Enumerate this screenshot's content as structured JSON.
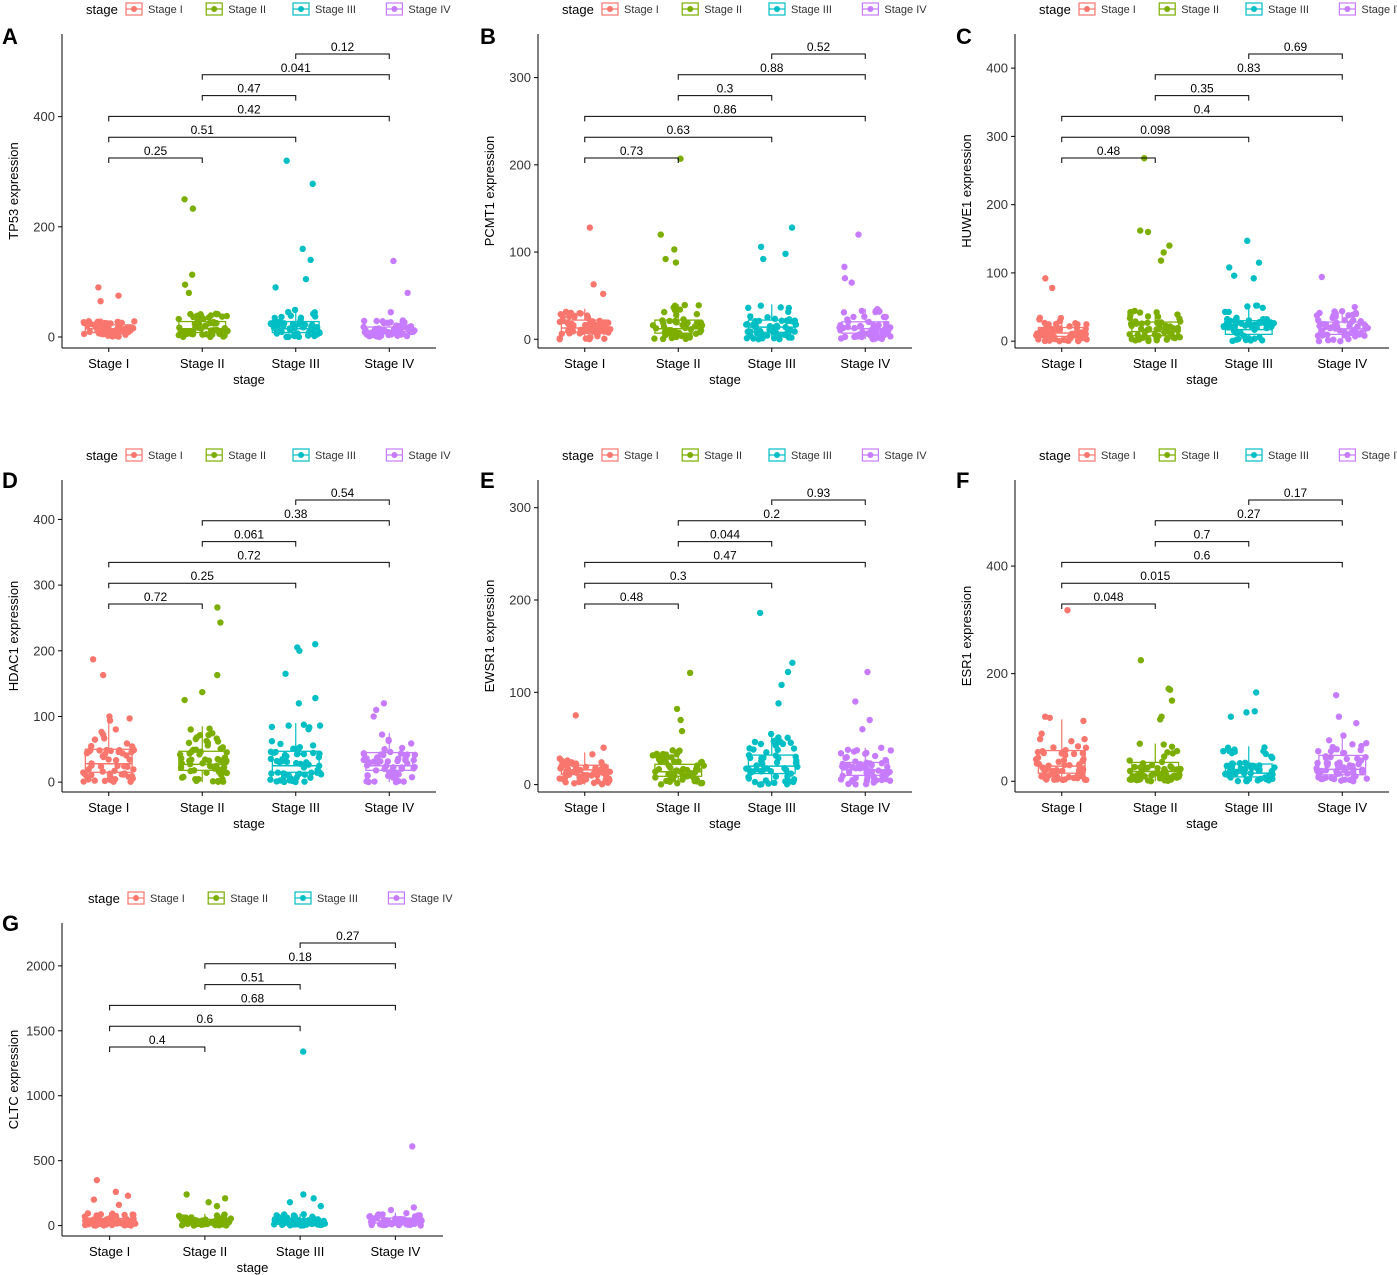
{
  "legend": {
    "title": "stage",
    "items": [
      {
        "label": "Stage I",
        "color": "#F8766D"
      },
      {
        "label": "Stage II",
        "color": "#7CAE00"
      },
      {
        "label": "Stage III",
        "color": "#00BFC4"
      },
      {
        "label": "Stage IV",
        "color": "#C77CFF"
      }
    ]
  },
  "chart_data": [
    {
      "panel": "A",
      "type": "box+jitter",
      "xlabel": "stage",
      "ylabel": "TP53 expression",
      "categories": [
        "Stage I",
        "Stage II",
        "Stage III",
        "Stage IV"
      ],
      "ylim": [
        -20,
        550
      ],
      "yticks": [
        0,
        200,
        400
      ],
      "boxes": [
        {
          "q1": 8,
          "median": 15,
          "q3": 22,
          "lo": 0,
          "hi": 30,
          "max": 90,
          "outliers": [
            90,
            75,
            65
          ]
        },
        {
          "q1": 8,
          "median": 15,
          "q3": 28,
          "lo": 0,
          "hi": 45,
          "max": 250,
          "outliers": [
            250,
            233,
            113,
            95,
            80
          ]
        },
        {
          "q1": 8,
          "median": 15,
          "q3": 28,
          "lo": 0,
          "hi": 50,
          "max": 320,
          "outliers": [
            320,
            278,
            160,
            140,
            105,
            90
          ]
        },
        {
          "q1": 6,
          "median": 10,
          "q3": 18,
          "lo": 0,
          "hi": 30,
          "max": 138,
          "outliers": [
            138,
            80,
            45
          ]
        }
      ],
      "comparisons": [
        {
          "from": "Stage III",
          "to": "Stage IV",
          "p": "0.12"
        },
        {
          "from": "Stage II",
          "to": "Stage IV",
          "p": "0.041"
        },
        {
          "from": "Stage II",
          "to": "Stage III",
          "p": "0.47"
        },
        {
          "from": "Stage I",
          "to": "Stage IV",
          "p": "0.42"
        },
        {
          "from": "Stage I",
          "to": "Stage III",
          "p": "0.51"
        },
        {
          "from": "Stage I",
          "to": "Stage II",
          "p": "0.25"
        }
      ]
    },
    {
      "panel": "B",
      "type": "box+jitter",
      "xlabel": "stage",
      "ylabel": "PCMT1 expression",
      "categories": [
        "Stage I",
        "Stage II",
        "Stage III",
        "Stage IV"
      ],
      "ylim": [
        -10,
        350
      ],
      "yticks": [
        0,
        100,
        200,
        300
      ],
      "boxes": [
        {
          "q1": 8,
          "median": 13,
          "q3": 22,
          "lo": 0,
          "hi": 35,
          "max": 128,
          "outliers": [
            128,
            63,
            52
          ]
        },
        {
          "q1": 7,
          "median": 12,
          "q3": 22,
          "lo": 0,
          "hi": 40,
          "max": 207,
          "outliers": [
            207,
            120,
            103,
            92,
            88
          ]
        },
        {
          "q1": 8,
          "median": 14,
          "q3": 22,
          "lo": 0,
          "hi": 40,
          "max": 128,
          "outliers": [
            128,
            106,
            98,
            92
          ]
        },
        {
          "q1": 7,
          "median": 12,
          "q3": 20,
          "lo": 0,
          "hi": 35,
          "max": 120,
          "outliers": [
            120,
            83,
            70,
            65
          ]
        }
      ],
      "comparisons": [
        {
          "from": "Stage III",
          "to": "Stage IV",
          "p": "0.52"
        },
        {
          "from": "Stage II",
          "to": "Stage IV",
          "p": "0.88"
        },
        {
          "from": "Stage II",
          "to": "Stage III",
          "p": "0.3"
        },
        {
          "from": "Stage I",
          "to": "Stage IV",
          "p": "0.86"
        },
        {
          "from": "Stage I",
          "to": "Stage III",
          "p": "0.63"
        },
        {
          "from": "Stage I",
          "to": "Stage II",
          "p": "0.73"
        }
      ]
    },
    {
      "panel": "C",
      "type": "box+jitter",
      "xlabel": "stage",
      "ylabel": "HUWE1 expression",
      "categories": [
        "Stage I",
        "Stage II",
        "Stage III",
        "Stage IV"
      ],
      "ylim": [
        -10,
        450
      ],
      "yticks": [
        0,
        100,
        200,
        300,
        400
      ],
      "boxes": [
        {
          "q1": 7,
          "median": 12,
          "q3": 20,
          "lo": 0,
          "hi": 35,
          "max": 92,
          "outliers": [
            92,
            78
          ]
        },
        {
          "q1": 8,
          "median": 14,
          "q3": 28,
          "lo": 0,
          "hi": 45,
          "max": 268,
          "outliers": [
            268,
            162,
            160,
            140,
            130,
            118
          ]
        },
        {
          "q1": 10,
          "median": 17,
          "q3": 30,
          "lo": 0,
          "hi": 55,
          "max": 147,
          "outliers": [
            147,
            115,
            108,
            96,
            92
          ]
        },
        {
          "q1": 10,
          "median": 18,
          "q3": 28,
          "lo": 0,
          "hi": 45,
          "max": 94,
          "outliers": [
            94,
            50
          ]
        }
      ],
      "comparisons": [
        {
          "from": "Stage III",
          "to": "Stage IV",
          "p": "0.69"
        },
        {
          "from": "Stage II",
          "to": "Stage IV",
          "p": "0.83"
        },
        {
          "from": "Stage II",
          "to": "Stage III",
          "p": "0.35"
        },
        {
          "from": "Stage I",
          "to": "Stage IV",
          "p": "0.4"
        },
        {
          "from": "Stage I",
          "to": "Stage III",
          "p": "0.098"
        },
        {
          "from": "Stage I",
          "to": "Stage II",
          "p": "0.48"
        }
      ]
    },
    {
      "panel": "D",
      "type": "box+jitter",
      "xlabel": "stage",
      "ylabel": "HDAC1 expression",
      "categories": [
        "Stage I",
        "Stage II",
        "Stage III",
        "Stage IV"
      ],
      "ylim": [
        -15,
        460
      ],
      "yticks": [
        0,
        100,
        200,
        300,
        400
      ],
      "boxes": [
        {
          "q1": 15,
          "median": 28,
          "q3": 50,
          "lo": 0,
          "hi": 95,
          "max": 187,
          "outliers": [
            187,
            163,
            100,
            97
          ]
        },
        {
          "q1": 18,
          "median": 27,
          "q3": 47,
          "lo": 0,
          "hi": 85,
          "max": 266,
          "outliers": [
            266,
            243,
            163,
            137,
            125
          ]
        },
        {
          "q1": 15,
          "median": 25,
          "q3": 47,
          "lo": 0,
          "hi": 90,
          "max": 210,
          "outliers": [
            210,
            205,
            200,
            165,
            128,
            120
          ]
        },
        {
          "q1": 18,
          "median": 25,
          "q3": 45,
          "lo": 0,
          "hi": 75,
          "max": 120,
          "outliers": [
            120,
            110,
            100
          ]
        }
      ],
      "comparisons": [
        {
          "from": "Stage III",
          "to": "Stage IV",
          "p": "0.54"
        },
        {
          "from": "Stage II",
          "to": "Stage IV",
          "p": "0.38"
        },
        {
          "from": "Stage II",
          "to": "Stage III",
          "p": "0.061"
        },
        {
          "from": "Stage I",
          "to": "Stage IV",
          "p": "0.72"
        },
        {
          "from": "Stage I",
          "to": "Stage III",
          "p": "0.25"
        },
        {
          "from": "Stage I",
          "to": "Stage II",
          "p": "0.72"
        }
      ]
    },
    {
      "panel": "E",
      "type": "box+jitter",
      "xlabel": "stage",
      "ylabel": "EWSR1 expression",
      "categories": [
        "Stage I",
        "Stage II",
        "Stage III",
        "Stage IV"
      ],
      "ylim": [
        -8,
        330
      ],
      "yticks": [
        0,
        100,
        200,
        300
      ],
      "boxes": [
        {
          "q1": 11,
          "median": 16,
          "q3": 21,
          "lo": 0,
          "hi": 35,
          "max": 75,
          "outliers": [
            75,
            40
          ]
        },
        {
          "q1": 9,
          "median": 14,
          "q3": 22,
          "lo": 0,
          "hi": 38,
          "max": 121,
          "outliers": [
            121,
            82,
            70,
            58
          ]
        },
        {
          "q1": 12,
          "median": 20,
          "q3": 32,
          "lo": 0,
          "hi": 55,
          "max": 186,
          "outliers": [
            186,
            132,
            122,
            108,
            88
          ]
        },
        {
          "q1": 10,
          "median": 16,
          "q3": 24,
          "lo": 0,
          "hi": 40,
          "max": 122,
          "outliers": [
            122,
            90,
            70,
            60
          ]
        }
      ],
      "comparisons": [
        {
          "from": "Stage III",
          "to": "Stage IV",
          "p": "0.93"
        },
        {
          "from": "Stage II",
          "to": "Stage IV",
          "p": "0.2"
        },
        {
          "from": "Stage II",
          "to": "Stage III",
          "p": "0.044"
        },
        {
          "from": "Stage I",
          "to": "Stage IV",
          "p": "0.47"
        },
        {
          "from": "Stage I",
          "to": "Stage III",
          "p": "0.3"
        },
        {
          "from": "Stage I",
          "to": "Stage II",
          "p": "0.48"
        }
      ]
    },
    {
      "panel": "F",
      "type": "box+jitter",
      "xlabel": "stage",
      "ylabel": "ESR1 expression",
      "categories": [
        "Stage I",
        "Stage II",
        "Stage III",
        "Stage IV"
      ],
      "ylim": [
        -20,
        560
      ],
      "yticks": [
        0,
        200,
        400
      ],
      "boxes": [
        {
          "q1": 15,
          "median": 28,
          "q3": 57,
          "lo": 0,
          "hi": 115,
          "max": 318,
          "outliers": [
            318,
            120,
            118
          ]
        },
        {
          "q1": 10,
          "median": 18,
          "q3": 35,
          "lo": 0,
          "hi": 70,
          "max": 225,
          "outliers": [
            225,
            172,
            170,
            150,
            120,
            115
          ]
        },
        {
          "q1": 8,
          "median": 15,
          "q3": 32,
          "lo": 0,
          "hi": 65,
          "max": 165,
          "outliers": [
            165,
            130,
            128,
            120
          ]
        },
        {
          "q1": 12,
          "median": 22,
          "q3": 48,
          "lo": 0,
          "hi": 85,
          "max": 160,
          "outliers": [
            160,
            120,
            108
          ]
        }
      ],
      "comparisons": [
        {
          "from": "Stage III",
          "to": "Stage IV",
          "p": "0.17"
        },
        {
          "from": "Stage II",
          "to": "Stage IV",
          "p": "0.27"
        },
        {
          "from": "Stage II",
          "to": "Stage III",
          "p": "0.7"
        },
        {
          "from": "Stage I",
          "to": "Stage IV",
          "p": "0.6"
        },
        {
          "from": "Stage I",
          "to": "Stage III",
          "p": "0.015"
        },
        {
          "from": "Stage I",
          "to": "Stage II",
          "p": "0.048"
        }
      ]
    },
    {
      "panel": "G",
      "type": "box+jitter",
      "xlabel": "stage",
      "ylabel": "CLTC expression",
      "categories": [
        "Stage I",
        "Stage II",
        "Stage III",
        "Stage IV"
      ],
      "ylim": [
        -80,
        2330
      ],
      "yticks": [
        0,
        500,
        1000,
        1500,
        2000
      ],
      "boxes": [
        {
          "q1": 18,
          "median": 35,
          "q3": 55,
          "lo": 0,
          "hi": 100,
          "max": 350,
          "outliers": [
            350,
            260,
            230,
            200,
            160
          ]
        },
        {
          "q1": 15,
          "median": 28,
          "q3": 48,
          "lo": 0,
          "hi": 90,
          "max": 240,
          "outliers": [
            240,
            210,
            180,
            150
          ]
        },
        {
          "q1": 15,
          "median": 28,
          "q3": 50,
          "lo": 0,
          "hi": 90,
          "max": 1340,
          "outliers": [
            1340,
            240,
            210,
            180,
            150
          ]
        },
        {
          "q1": 20,
          "median": 38,
          "q3": 58,
          "lo": 0,
          "hi": 100,
          "max": 610,
          "outliers": [
            610,
            140,
            120
          ]
        }
      ],
      "comparisons": [
        {
          "from": "Stage III",
          "to": "Stage IV",
          "p": "0.27"
        },
        {
          "from": "Stage II",
          "to": "Stage IV",
          "p": "0.18"
        },
        {
          "from": "Stage II",
          "to": "Stage III",
          "p": "0.51"
        },
        {
          "from": "Stage I",
          "to": "Stage IV",
          "p": "0.68"
        },
        {
          "from": "Stage I",
          "to": "Stage III",
          "p": "0.6"
        },
        {
          "from": "Stage I",
          "to": "Stage II",
          "p": "0.4"
        }
      ]
    }
  ]
}
